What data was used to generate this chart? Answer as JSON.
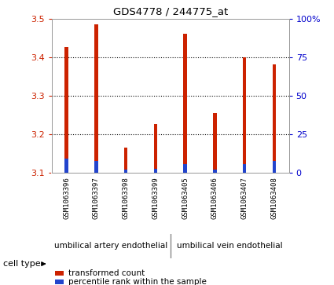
{
  "title": "GDS4778 / 244775_at",
  "samples": [
    "GSM1063396",
    "GSM1063397",
    "GSM1063398",
    "GSM1063399",
    "GSM1063405",
    "GSM1063406",
    "GSM1063407",
    "GSM1063408"
  ],
  "red_values": [
    3.425,
    3.485,
    3.165,
    3.225,
    3.46,
    3.255,
    3.4,
    3.38
  ],
  "blue_values": [
    3.135,
    3.13,
    3.108,
    3.11,
    3.122,
    3.108,
    3.122,
    3.13
  ],
  "bar_bottom": 3.1,
  "ylim_left": [
    3.1,
    3.5
  ],
  "ylim_right": [
    0,
    100
  ],
  "yticks_left": [
    3.1,
    3.2,
    3.3,
    3.4,
    3.5
  ],
  "yticks_right": [
    0,
    25,
    50,
    75,
    100
  ],
  "ytick_labels_right": [
    "0",
    "25",
    "50",
    "75",
    "100%"
  ],
  "red_color": "#cc2200",
  "blue_color": "#2244cc",
  "group1_label": "umbilical artery endothelial",
  "group2_label": "umbilical vein endothelial",
  "cell_type_label": "cell type",
  "legend_red": "transformed count",
  "legend_blue": "percentile rank within the sample",
  "bar_width": 0.12,
  "grid_color": "#000000",
  "bg_color": "#ffffff",
  "tick_color_left": "#cc2200",
  "tick_color_right": "#0000cc",
  "group_bg_color": "#66dd66",
  "sample_bg_color": "#cccccc"
}
